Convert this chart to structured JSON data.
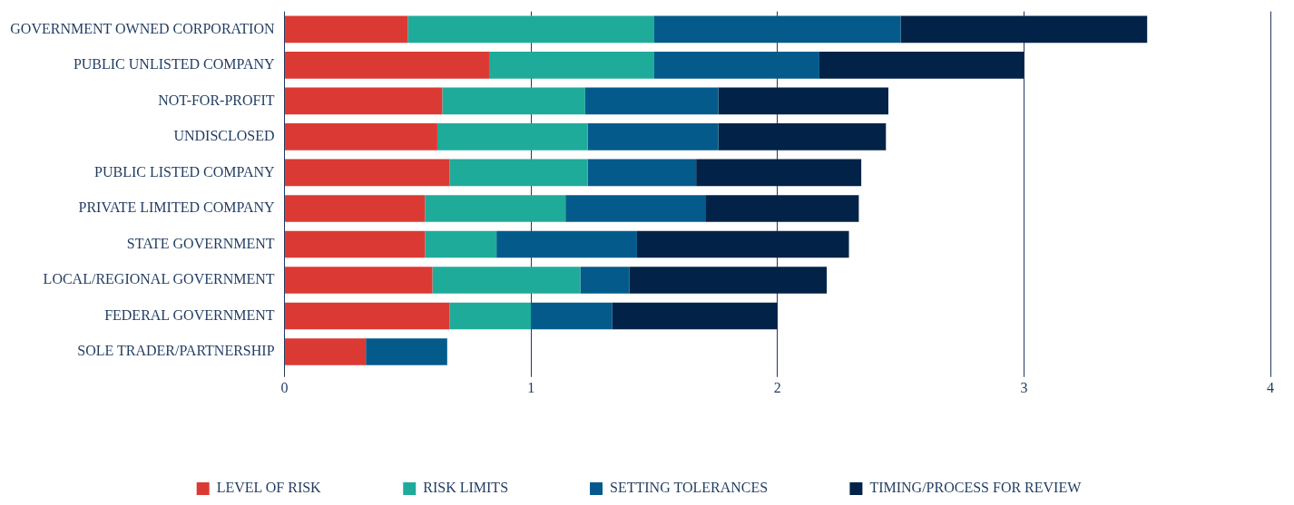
{
  "chart_data": {
    "type": "bar",
    "orientation": "horizontal",
    "stacked": true,
    "categories": [
      "GOVERNMENT OWNED CORPORATION",
      "PUBLIC UNLISTED COMPANY",
      "NOT-FOR-PROFIT",
      "UNDISCLOSED",
      "PUBLIC LISTED COMPANY",
      "PRIVATE LIMITED COMPANY",
      "STATE GOVERNMENT",
      "LOCAL/REGIONAL GOVERNMENT",
      "FEDERAL GOVERNMENT",
      "SOLE TRADER/PARTNERSHIP"
    ],
    "series": [
      {
        "name": "LEVEL OF RISK",
        "color": "#db3a34",
        "values": [
          0.5,
          0.83,
          0.64,
          0.62,
          0.67,
          0.57,
          0.57,
          0.6,
          0.67,
          0.33
        ]
      },
      {
        "name": "RISK LIMITS",
        "color": "#1fab9a",
        "values": [
          1,
          0.67,
          0.58,
          0.61,
          0.56,
          0.57,
          0.29,
          0.6,
          0.33,
          0
        ]
      },
      {
        "name": "SETTING TOLERANCES",
        "color": "#045b8b",
        "values": [
          1,
          0.67,
          0.54,
          0.53,
          0.44,
          0.57,
          0.57,
          0.2,
          0.33,
          0.33
        ]
      },
      {
        "name": "TIMING/PROCESS FOR REVIEW",
        "color": "#022347",
        "values": [
          1,
          0.83,
          0.69,
          0.68,
          0.67,
          0.62,
          0.86,
          0.8,
          0.67,
          0
        ]
      }
    ],
    "xlim": [
      0,
      4
    ],
    "xticks": [
      0,
      1,
      2,
      3,
      4
    ],
    "grid": "x",
    "legend": "bottom"
  }
}
